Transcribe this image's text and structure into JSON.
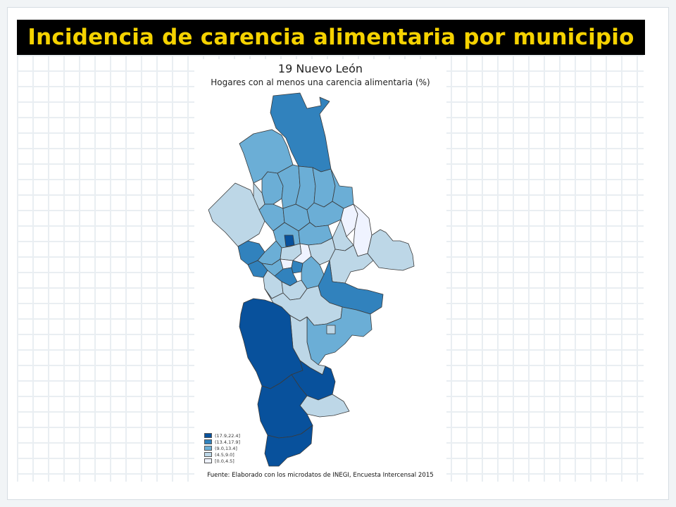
{
  "slide": {
    "title": "Incidencia de carencia alimentaria por municipio"
  },
  "map": {
    "title": "19 Nuevo León",
    "subtitle": "Hogares con al menos una carencia alimentaria (%)",
    "source": "Fuente: Elaborado con los microdatos de INEGI, Encuesta Intercensal 2015",
    "legend": [
      {
        "label": "(17.9,22.4]",
        "color": "#08519c"
      },
      {
        "label": "(13.4,17.9]",
        "color": "#3182bd"
      },
      {
        "label": "(9.0,13.4]",
        "color": "#6baed6"
      },
      {
        "label": "(4.5,9.0]",
        "color": "#bdd7e7"
      },
      {
        "label": "[0.0,4.5]",
        "color": "#eff3ff"
      }
    ],
    "colors": {
      "class1": "#08519c",
      "class2": "#3182bd",
      "class3": "#6baed6",
      "class4": "#bdd7e7",
      "class5": "#eff3ff",
      "border": "#3a3a3a",
      "title_text": "#f5d200",
      "title_bar": "#000000"
    }
  }
}
